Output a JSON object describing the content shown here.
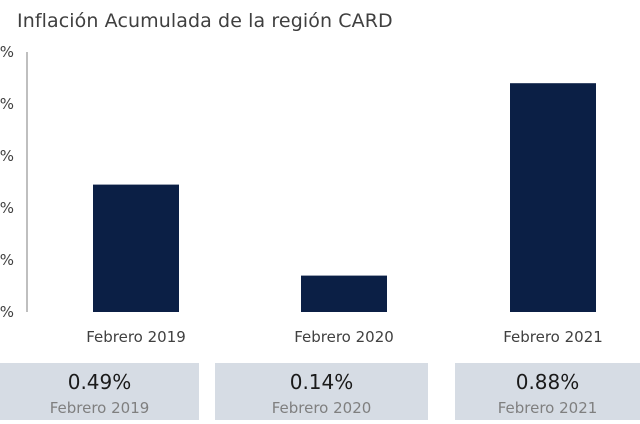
{
  "chart_data": {
    "type": "bar",
    "title": "Inflación Acumulada de la región CARD",
    "categories": [
      "Febrero 2019",
      "Febrero 2020",
      "Febrero 2021"
    ],
    "values": [
      0.49,
      0.14,
      0.88
    ],
    "ytick_labels": [
      "%",
      "%",
      "%",
      "%",
      "%",
      "%"
    ],
    "ylim": [
      0.0,
      1.0
    ],
    "bar_color": "#0b1f45",
    "axis_color": "#7f7f7f",
    "grid": false,
    "legend": "none"
  },
  "summary_cards": [
    {
      "value": "0.49%",
      "label": "Febrero 2019"
    },
    {
      "value": "0.14%",
      "label": "Febrero 2020"
    },
    {
      "value": "0.88%",
      "label": "Febrero 2021"
    }
  ],
  "colors": {
    "card_background": "#d6dce4"
  }
}
